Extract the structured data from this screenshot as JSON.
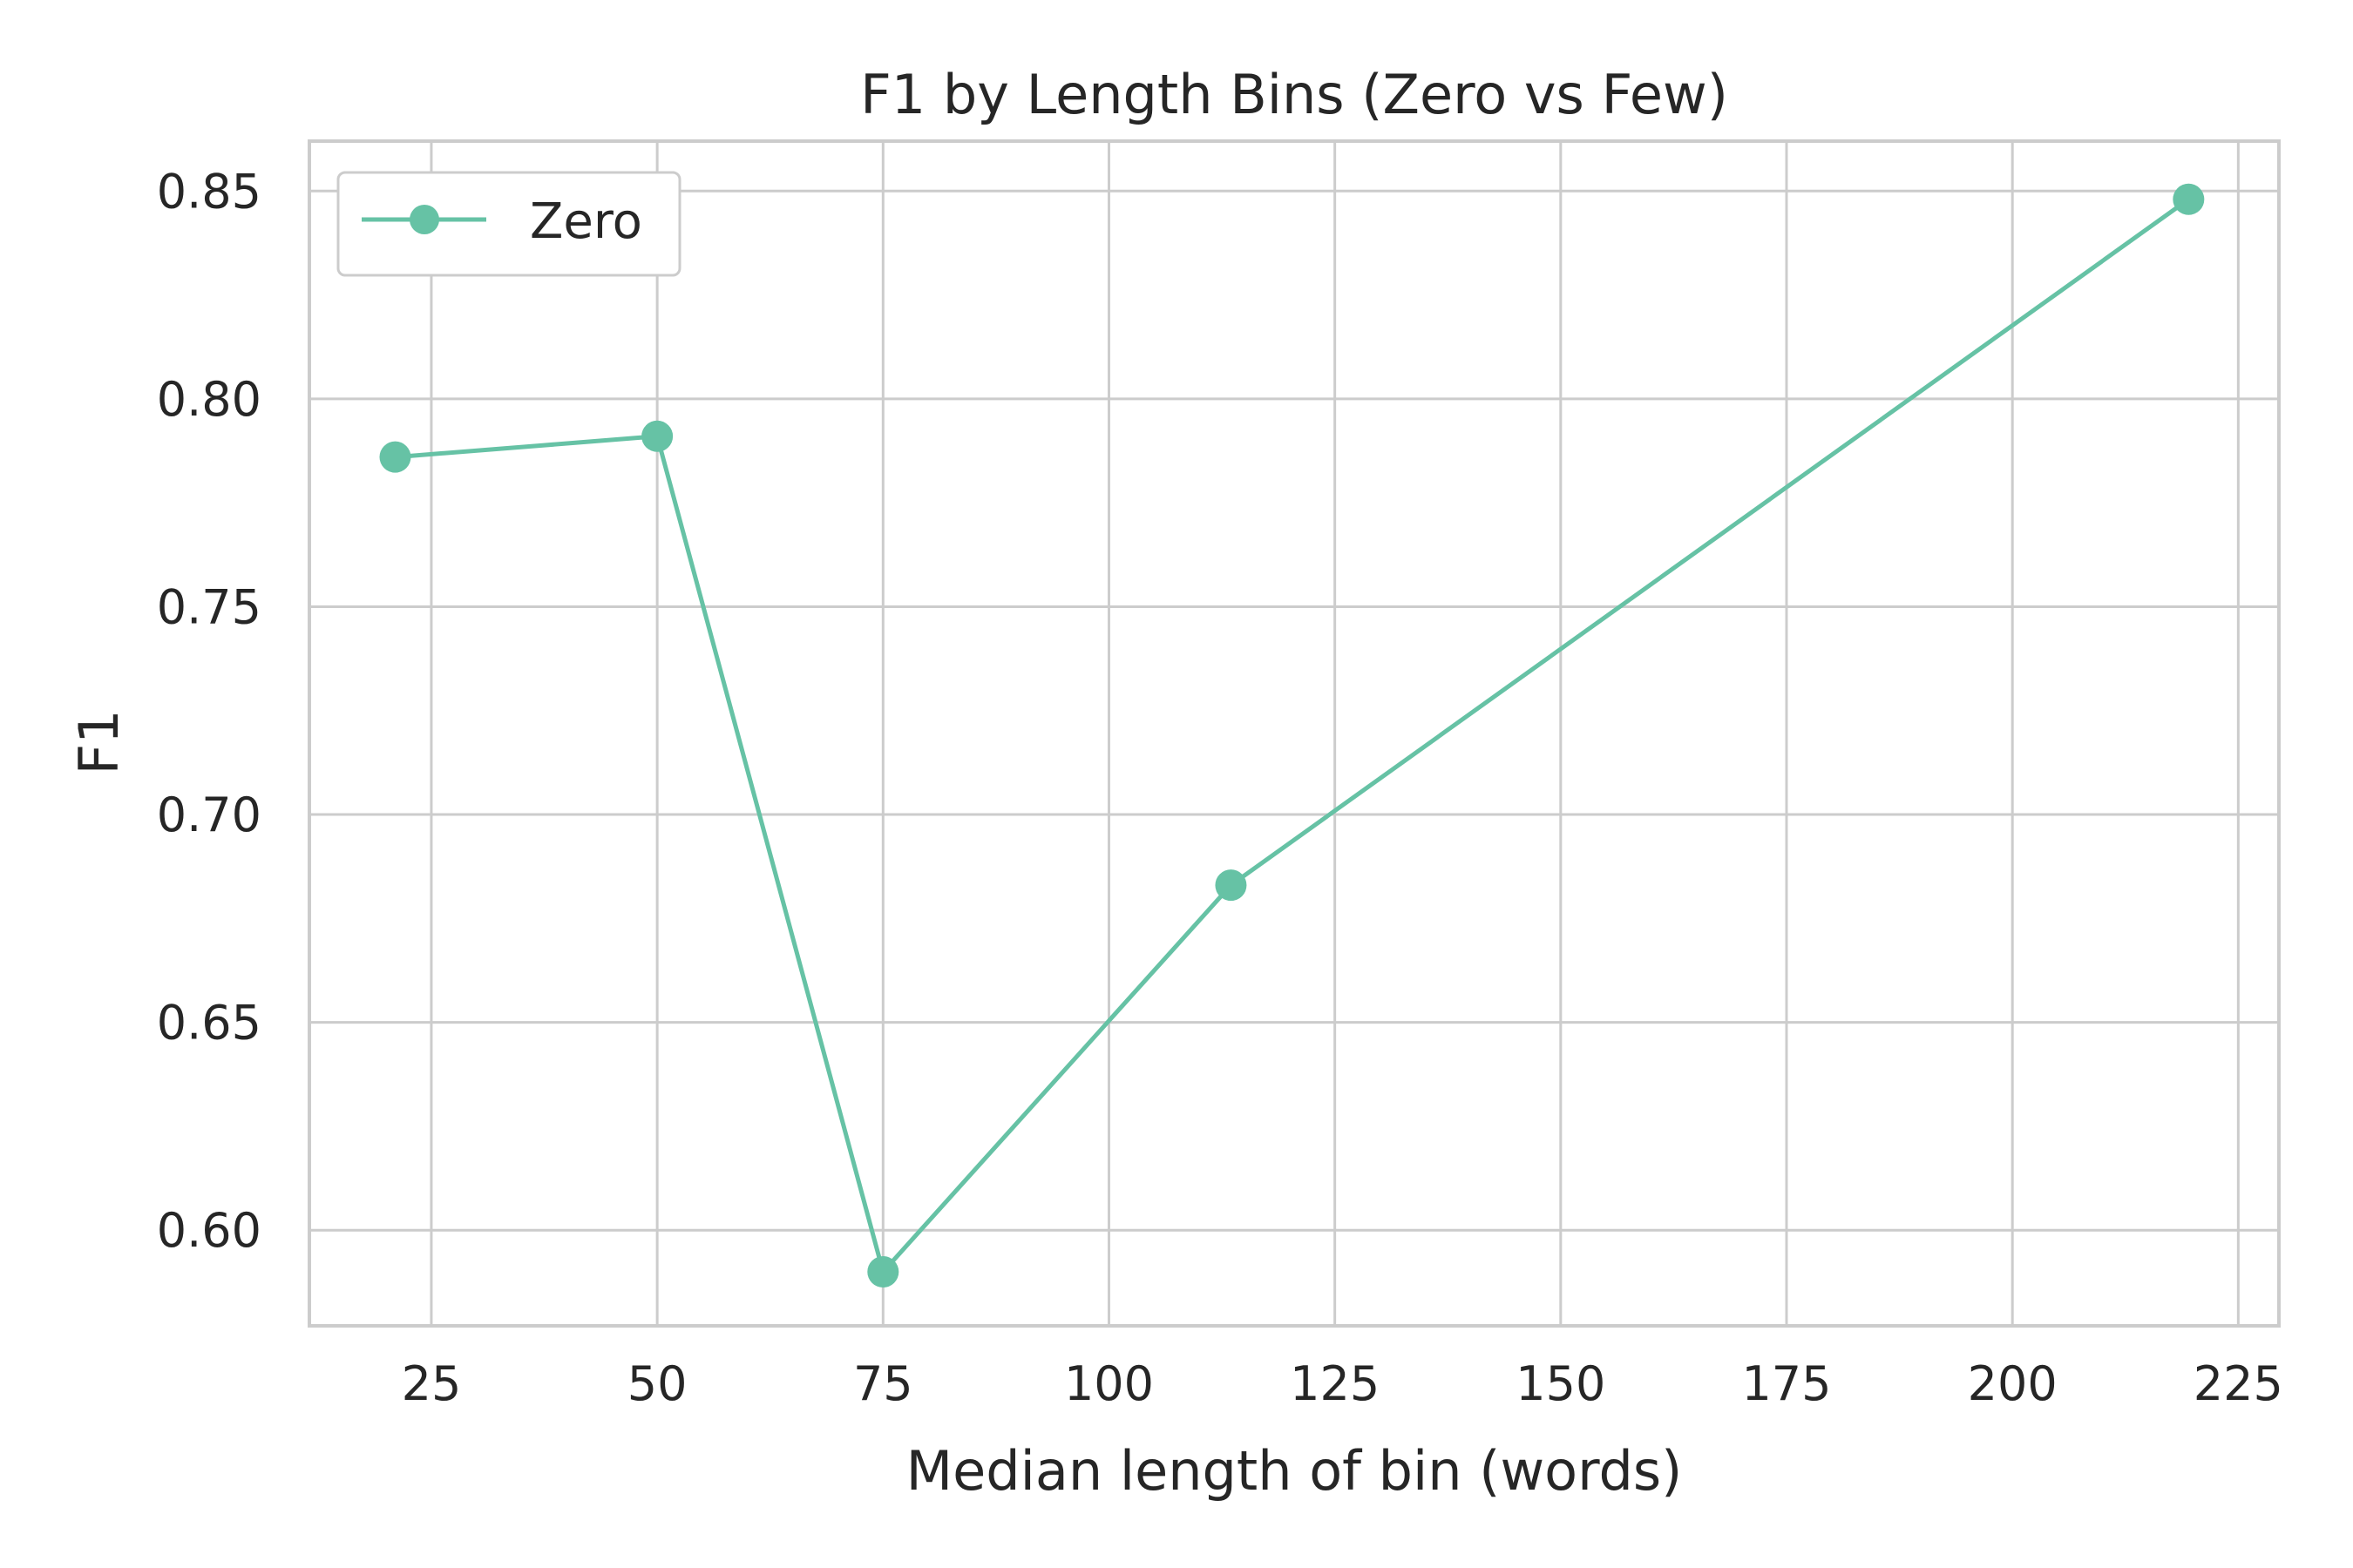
{
  "chart_data": {
    "type": "line",
    "title": "F1 by Length Bins (Zero vs Few)",
    "xlabel": "Median length of bin (words)",
    "ylabel": "F1",
    "xlim": [
      11.5,
      229.5
    ],
    "ylim": [
      0.577,
      0.862
    ],
    "xticks": [
      25,
      50,
      75,
      100,
      125,
      150,
      175,
      200,
      225
    ],
    "yticks": [
      0.6,
      0.65,
      0.7,
      0.75,
      0.8,
      0.85
    ],
    "ytick_labels": [
      "0.60",
      "0.65",
      "0.70",
      "0.75",
      "0.80",
      "0.85"
    ],
    "grid": true,
    "legend_position": "top-left",
    "series": [
      {
        "name": "Zero",
        "color": "#66c2a5",
        "marker": "circle",
        "x": [
          21,
          50,
          75,
          113.5,
          219.5
        ],
        "y": [
          0.786,
          0.791,
          0.59,
          0.683,
          0.848
        ]
      }
    ]
  }
}
